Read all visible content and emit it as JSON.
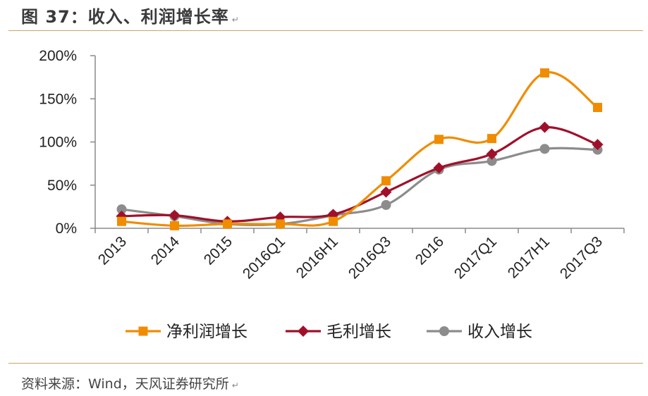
{
  "figure": {
    "title": "图 37：收入、利润增长率",
    "title_mark": "↵",
    "source": "资料来源：Wind，天风证券研究所",
    "source_mark": "↵"
  },
  "chart_data": {
    "type": "line",
    "categories": [
      "2013",
      "2014",
      "2015",
      "2016Q1",
      "2016H1",
      "2016Q3",
      "2016",
      "2017Q1",
      "2017H1",
      "2017Q3"
    ],
    "ylim": [
      0,
      200
    ],
    "yticks": [
      0,
      50,
      100,
      150,
      200
    ],
    "ytick_labels": [
      "0%",
      "50%",
      "100%",
      "150%",
      "200%"
    ],
    "grid": false,
    "legend": "bottom",
    "series": [
      {
        "name": "净利润增长",
        "color": "#F08C00",
        "marker": "square",
        "values": [
          8,
          3,
          5,
          5,
          8,
          55,
          103,
          104,
          180,
          140
        ]
      },
      {
        "name": "毛利增长",
        "color": "#A0102A",
        "marker": "diamond",
        "values": [
          14,
          15,
          8,
          13,
          16,
          42,
          70,
          86,
          117,
          97
        ]
      },
      {
        "name": "收入增长",
        "color": "#8C8C8C",
        "marker": "circle",
        "values": [
          22,
          14,
          5,
          5,
          15,
          27,
          68,
          78,
          92,
          91
        ]
      }
    ]
  }
}
